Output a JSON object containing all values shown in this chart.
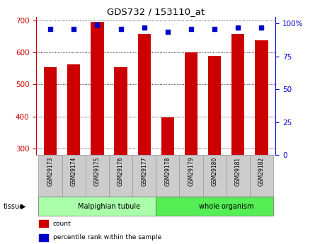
{
  "title": "GDS732 / 153110_at",
  "samples": [
    "GSM29173",
    "GSM29174",
    "GSM29175",
    "GSM29176",
    "GSM29177",
    "GSM29178",
    "GSM29179",
    "GSM29180",
    "GSM29181",
    "GSM29182"
  ],
  "counts": [
    553,
    563,
    695,
    554,
    657,
    397,
    599,
    588,
    657,
    638
  ],
  "percentiles": [
    96,
    96,
    99,
    96,
    97,
    94,
    96,
    96,
    97,
    97
  ],
  "ylim_left": [
    280,
    710
  ],
  "ylim_right": [
    0,
    105
  ],
  "yticks_left": [
    300,
    400,
    500,
    600,
    700
  ],
  "yticks_right": [
    0,
    25,
    50,
    75,
    100
  ],
  "yticklabels_right": [
    "0",
    "25",
    "50",
    "75",
    "100%"
  ],
  "tissue_groups": [
    {
      "label": "Malpighian tubule",
      "start": 0,
      "end": 5,
      "color": "#aaffaa"
    },
    {
      "label": "whole organism",
      "start": 5,
      "end": 10,
      "color": "#55ee55"
    }
  ],
  "tissue_label": "tissue",
  "bar_color": "#cc0000",
  "dot_color": "#0000cc",
  "bar_width": 0.55,
  "left_axis_color": "#cc0000",
  "right_axis_color": "#0000cc",
  "legend_count_color": "#cc0000",
  "legend_percentile_color": "#0000cc",
  "grid_color": "#000000",
  "sample_box_color": "#cccccc",
  "background_color": "#ffffff"
}
